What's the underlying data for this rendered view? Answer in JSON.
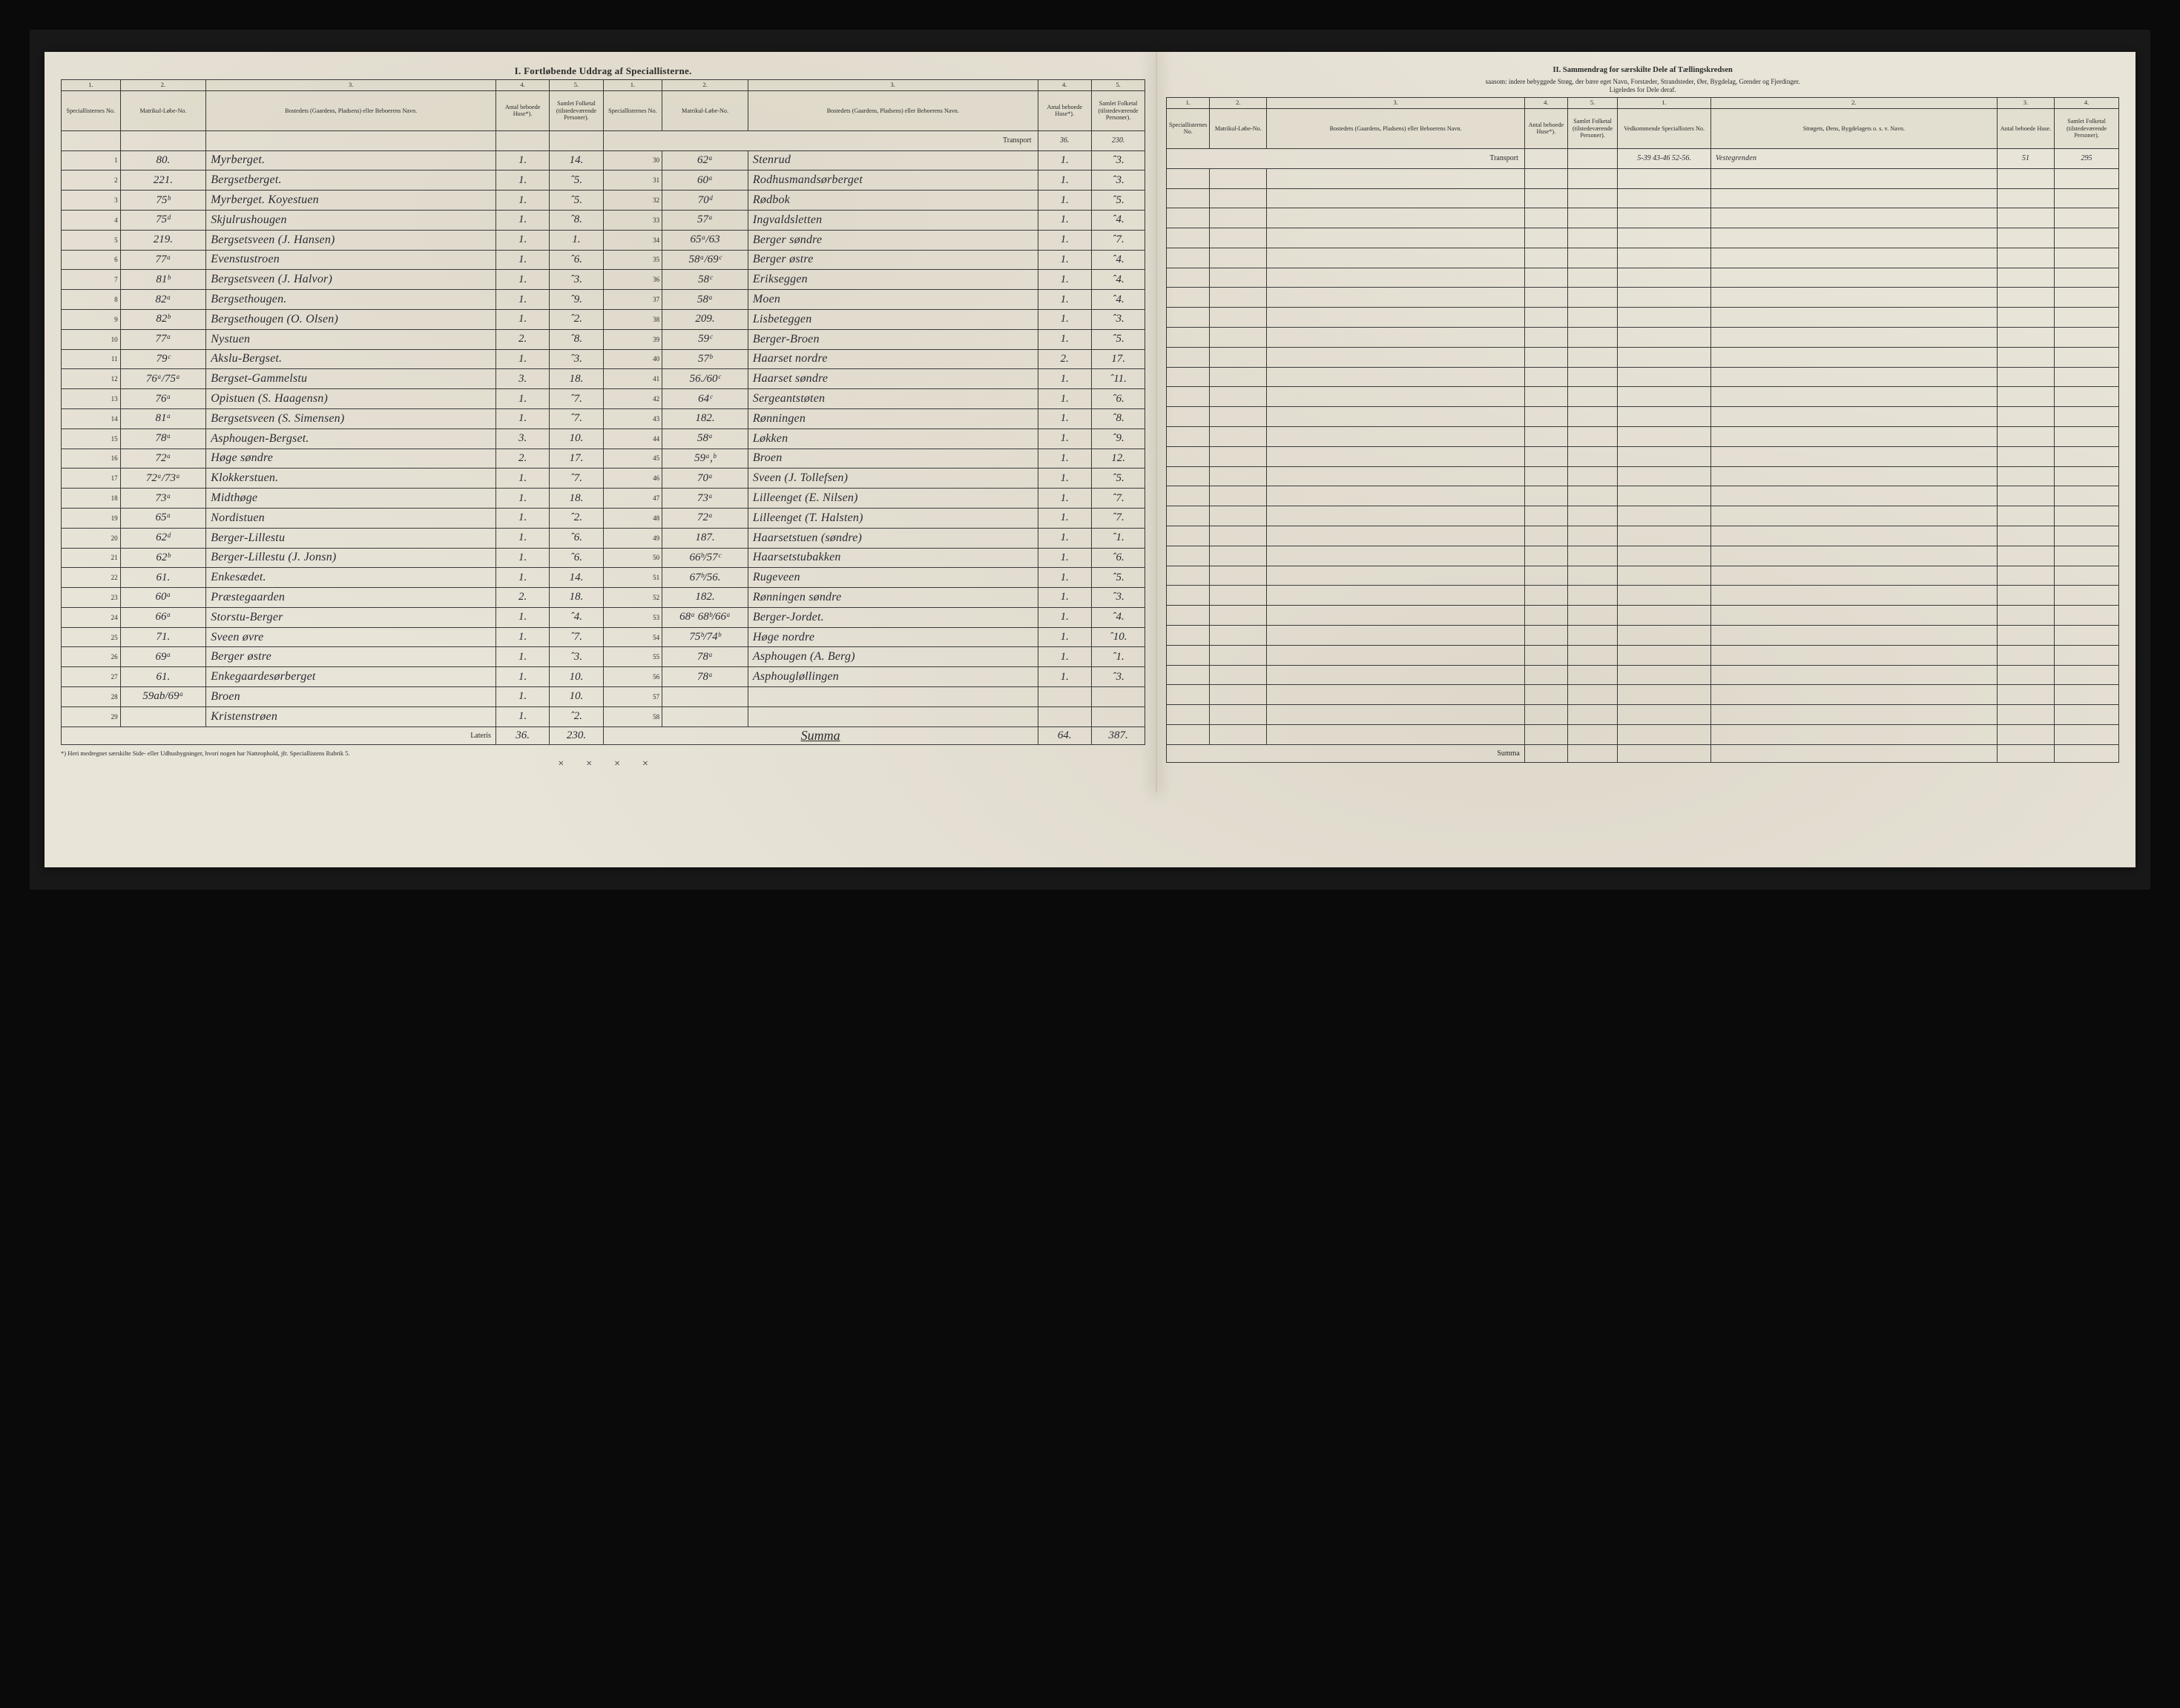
{
  "titleLeft": "I.  Fortløbende  Uddrag  af  Speciallisterne.",
  "titleRight": "II.  Sammendrag  for  særskilte  Dele  af  Tællingskredsen",
  "subtitleRight1": "saasom: indere bebyggede Strøg, der bære eget Navn, Forstæder, Strandsteder, Øer, Bygdelag, Grender og Fjerdinger.",
  "subtitleRight2": "Ligeledes for Dele deraf.",
  "topNums": [
    "1.",
    "2.",
    "3.",
    "4.",
    "5."
  ],
  "hdr": {
    "no": "Speciallisternes No.",
    "mat": "Matrikul-Løbe-No.",
    "name": "Bostedets (Gaardens, Pladsens) eller Beboerens Navn.",
    "h": "Antal beboede Huse*).",
    "p": "Samlet Folketal (tilstedeværende Personer)."
  },
  "hdrR2": {
    "ved": "Vedkommende Speciallisters No.",
    "str": "Strøgets, Øens, Bygdelagets o. s. v. Navn.",
    "h": "Antal beboede Huse.",
    "p": "Samlet Folketal (tilstedeværende Personer)."
  },
  "transport": "Transport",
  "lateris": "Lateris",
  "summaWord": "Summa",
  "footnote": "*) Heri medregnet særskilte Side- eller Udhusbygninger, hvori nogen har Natteophold, jfr. Speciallistens Rubrik 5.",
  "transportVals": {
    "h": "36.",
    "p": "230."
  },
  "laterisVals": {
    "h": "36.",
    "p": "230."
  },
  "summaVals": {
    "h": "64.",
    "p": "387."
  },
  "rowsA": [
    {
      "n": "1",
      "mat": "80.",
      "name": "Myrberget.",
      "h": "1.",
      "p": "14."
    },
    {
      "n": "2",
      "mat": "221.",
      "name": "Bergsetberget.",
      "h": "1.",
      "p": "ˆ5."
    },
    {
      "n": "3",
      "mat": "75ᵇ",
      "name": "Myrberget. Koyestuen",
      "h": "1.",
      "p": "ˆ5."
    },
    {
      "n": "4",
      "mat": "75ᵈ",
      "name": "Skjulrushougen",
      "h": "1.",
      "p": "ˆ8."
    },
    {
      "n": "5",
      "mat": "219.",
      "name": "Bergsetsveen (J. Hansen)",
      "h": "1.",
      "p": "1."
    },
    {
      "n": "6",
      "mat": "77ᵃ",
      "name": "Evenstustroen",
      "h": "1.",
      "p": "ˆ6."
    },
    {
      "n": "7",
      "mat": "81ᵇ",
      "name": "Bergsetsveen (J. Halvor)",
      "h": "1.",
      "p": "ˆ3."
    },
    {
      "n": "8",
      "mat": "82ᵃ",
      "name": "Bergsethougen.",
      "h": "1.",
      "p": "ˆ9."
    },
    {
      "n": "9",
      "mat": "82ᵇ",
      "name": "Bergsethougen (O. Olsen)",
      "h": "1.",
      "p": "ˆ2."
    },
    {
      "n": "10",
      "mat": "77ᵃ",
      "name": "Nystuen",
      "h": "2.",
      "p": "ˆ8."
    },
    {
      "n": "11",
      "mat": "79ᶜ",
      "name": "Akslu-Bergset.",
      "h": "1.",
      "p": "ˆ3."
    },
    {
      "n": "12",
      "mat": "76ᵃ/75ᵃ",
      "name": "Bergset-Gammelstu",
      "h": "3.",
      "p": "18."
    },
    {
      "n": "13",
      "mat": "76ᵃ",
      "name": "Opistuen (S. Haagensn)",
      "h": "1.",
      "p": "ˆ7."
    },
    {
      "n": "14",
      "mat": "81ᵃ",
      "name": "Bergsetsveen (S. Simensen)",
      "h": "1.",
      "p": "ˆ7."
    },
    {
      "n": "15",
      "mat": "78ᵃ",
      "name": "Asphougen-Bergset.",
      "h": "3.",
      "p": "10."
    },
    {
      "n": "16",
      "mat": "72ᵃ",
      "name": "Høge søndre",
      "h": "2.",
      "p": "17."
    },
    {
      "n": "17",
      "mat": "72ᵃ/73ᵃ",
      "name": "Klokkerstuen.",
      "h": "1.",
      "p": "ˆ7."
    },
    {
      "n": "18",
      "mat": "73ᵃ",
      "name": "Midthøge",
      "h": "1.",
      "p": "18."
    },
    {
      "n": "19",
      "mat": "65ᵃ",
      "name": "Nordistuen",
      "h": "1.",
      "p": "ˆ2."
    },
    {
      "n": "20",
      "mat": "62ᵈ",
      "name": "Berger-Lillestu",
      "h": "1.",
      "p": "ˆ6."
    },
    {
      "n": "21",
      "mat": "62ᵇ",
      "name": "Berger-Lillestu (J. Jonsn)",
      "h": "1.",
      "p": "ˆ6."
    },
    {
      "n": "22",
      "mat": "61.",
      "name": "Enkesædet.",
      "h": "1.",
      "p": "14."
    },
    {
      "n": "23",
      "mat": "60ᵃ",
      "name": "Præstegaarden",
      "h": "2.",
      "p": "18."
    },
    {
      "n": "24",
      "mat": "66ᵃ",
      "name": "Storstu-Berger",
      "h": "1.",
      "p": "ˆ4."
    },
    {
      "n": "25",
      "mat": "71.",
      "name": "Sveen øvre",
      "h": "1.",
      "p": "ˆ7."
    },
    {
      "n": "26",
      "mat": "69ᵃ",
      "name": "Berger østre",
      "h": "1.",
      "p": "ˆ3."
    },
    {
      "n": "27",
      "mat": "61.",
      "name": "Enkegaardesørberget",
      "h": "1.",
      "p": "10."
    },
    {
      "n": "28",
      "mat": "59ab/69ᵃ",
      "name": "Broen",
      "h": "1.",
      "p": "10."
    },
    {
      "n": "29",
      "mat": "",
      "name": "Kristenstrøen",
      "h": "1.",
      "p": "ˆ2."
    }
  ],
  "rowsB": [
    {
      "n": "30",
      "mat": "62ᵃ",
      "name": "Stenrud",
      "h": "1.",
      "p": "ˆ3."
    },
    {
      "n": "31",
      "mat": "60ᵃ",
      "name": "Rodhusmandsørberget",
      "h": "1.",
      "p": "ˆ3."
    },
    {
      "n": "32",
      "mat": "70ᵈ",
      "name": "Rødbok",
      "h": "1.",
      "p": "ˆ5."
    },
    {
      "n": "33",
      "mat": "57ᵃ",
      "name": "Ingvaldsletten",
      "h": "1.",
      "p": "ˆ4."
    },
    {
      "n": "34",
      "mat": "65ᵃ/63",
      "name": "Berger søndre",
      "h": "1.",
      "p": "ˆ7."
    },
    {
      "n": "35",
      "mat": "58ᵃ/69ᶜ",
      "name": "Berger østre",
      "h": "1.",
      "p": "ˆ4."
    },
    {
      "n": "36",
      "mat": "58ᶜ",
      "name": "Erikseggen",
      "h": "1.",
      "p": "ˆ4."
    },
    {
      "n": "37",
      "mat": "58ᵃ",
      "name": "Moen",
      "h": "1.",
      "p": "ˆ4."
    },
    {
      "n": "38",
      "mat": "209.",
      "name": "Lisbeteggen",
      "h": "1.",
      "p": "ˆ3."
    },
    {
      "n": "39",
      "mat": "59ᶜ",
      "name": "Berger-Broen",
      "h": "1.",
      "p": "ˆ5."
    },
    {
      "n": "40",
      "mat": "57ᵇ",
      "name": "Haarset nordre",
      "h": "2.",
      "p": "17."
    },
    {
      "n": "41",
      "mat": "56./60ᶜ",
      "name": "Haarset søndre",
      "h": "1.",
      "p": "ˆ11."
    },
    {
      "n": "42",
      "mat": "64ᶜ",
      "name": "Sergeantstøten",
      "h": "1.",
      "p": "ˆ6."
    },
    {
      "n": "43",
      "mat": "182.",
      "name": "Rønningen",
      "h": "1.",
      "p": "ˆ8."
    },
    {
      "n": "44",
      "mat": "58ᵃ",
      "name": "Løkken",
      "h": "1.",
      "p": "ˆ9."
    },
    {
      "n": "45",
      "mat": "59ᵃ,ᵇ",
      "name": "Broen",
      "h": "1.",
      "p": "12."
    },
    {
      "n": "46",
      "mat": "70ᵃ",
      "name": "Sveen (J. Tollefsen)",
      "h": "1.",
      "p": "ˆ5."
    },
    {
      "n": "47",
      "mat": "73ᵃ",
      "name": "Lilleenget (E. Nilsen)",
      "h": "1.",
      "p": "ˆ7."
    },
    {
      "n": "48",
      "mat": "72ᵃ",
      "name": "Lilleenget (T. Halsten)",
      "h": "1.",
      "p": "ˆ7."
    },
    {
      "n": "49",
      "mat": "187.",
      "name": "Haarsetstuen (søndre)",
      "h": "1.",
      "p": "ˆ1."
    },
    {
      "n": "50",
      "mat": "66ᵇ/57ᶜ",
      "name": "Haarsetstubakken",
      "h": "1.",
      "p": "ˆ6."
    },
    {
      "n": "51",
      "mat": "67ᵇ/56.",
      "name": "Rugeveen",
      "h": "1.",
      "p": "ˆ5."
    },
    {
      "n": "52",
      "mat": "182.",
      "name": "Rønningen søndre",
      "h": "1.",
      "p": "ˆ3."
    },
    {
      "n": "53",
      "mat": "68ᵃ 68ᵇ/66ᵃ",
      "name": "Berger-Jordet.",
      "h": "1.",
      "p": "ˆ4."
    },
    {
      "n": "54",
      "mat": "75ᵇ/74ᵇ",
      "name": "Høge nordre",
      "h": "1.",
      "p": "ˆ10."
    },
    {
      "n": "55",
      "mat": "78ᵃ",
      "name": "Asphougen (A. Berg)",
      "h": "1.",
      "p": "ˆ1."
    },
    {
      "n": "56",
      "mat": "78ᵃ",
      "name": "Asphougløllingen",
      "h": "1.",
      "p": "ˆ3."
    },
    {
      "n": "57",
      "mat": "",
      "name": "",
      "h": "",
      "p": ""
    },
    {
      "n": "58",
      "mat": "",
      "name": "",
      "h": "",
      "p": ""
    }
  ],
  "panel2Row": {
    "ved": "5-39 43-46 52-56.",
    "str": "Vestegrenden",
    "h": "51",
    "p": "295"
  }
}
